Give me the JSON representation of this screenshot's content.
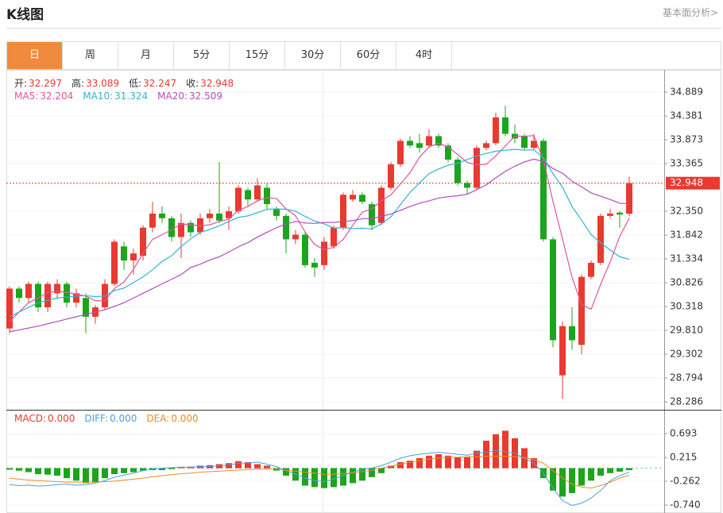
{
  "header": {
    "title": "K线图",
    "link": "基本面分析>"
  },
  "tabs": [
    "日",
    "周",
    "月",
    "5分",
    "15分",
    "30分",
    "60分",
    "4时"
  ],
  "chart_data": [
    {
      "type": "candlestick",
      "up_color": "#e83a2f",
      "down_color": "#1ca51c",
      "ohlc_labels": [
        "开:",
        "高:",
        "低:",
        "收:"
      ],
      "open": [
        29.85,
        30.7,
        30.5,
        30.8,
        30.3,
        30.6,
        30.8,
        30.4,
        30.5,
        30.1,
        30.3,
        30.8,
        31.6,
        31.3,
        31.4,
        32.0,
        32.3,
        32.2,
        31.8,
        32.1,
        31.9,
        32.2,
        32.3,
        32.2,
        32.35,
        32.8,
        32.6,
        32.85,
        32.4,
        32.25,
        31.75,
        31.85,
        31.25,
        31.2,
        31.6,
        32.0,
        32.6,
        32.7,
        32.5,
        32.1,
        32.85,
        33.35,
        33.85,
        33.8,
        33.75,
        33.95,
        33.75,
        33.45,
        32.95,
        32.85,
        33.7,
        33.8,
        34.35,
        34.0,
        33.95,
        33.7,
        33.85,
        31.75,
        28.85,
        29.9,
        29.5,
        30.95,
        31.25,
        32.25,
        32.32,
        32.297
      ],
      "high": [
        30.75,
        30.75,
        30.85,
        30.85,
        30.85,
        30.9,
        30.85,
        30.7,
        30.6,
        30.35,
        30.9,
        31.75,
        31.7,
        31.55,
        32.05,
        32.55,
        32.45,
        32.25,
        32.3,
        32.15,
        32.3,
        32.4,
        33.4,
        32.45,
        32.9,
        32.85,
        33.05,
        32.95,
        32.45,
        32.3,
        31.95,
        31.9,
        31.35,
        31.8,
        32.05,
        32.75,
        32.8,
        32.75,
        32.55,
        32.9,
        33.4,
        33.9,
        33.95,
        34.0,
        34.1,
        34.0,
        33.8,
        33.5,
        33.0,
        33.75,
        33.85,
        34.45,
        34.6,
        34.2,
        34.0,
        34.0,
        33.9,
        31.8,
        30.0,
        30.3,
        31.0,
        31.3,
        32.3,
        32.4,
        32.35,
        33.089
      ],
      "low": [
        29.75,
        30.4,
        30.4,
        30.2,
        30.2,
        30.5,
        30.3,
        30.3,
        29.75,
        29.95,
        30.25,
        30.75,
        31.1,
        31.0,
        31.3,
        31.9,
        32.1,
        31.7,
        31.35,
        31.8,
        31.85,
        32.1,
        32.1,
        31.95,
        32.3,
        32.45,
        32.55,
        32.4,
        32.15,
        31.45,
        31.65,
        31.15,
        30.95,
        31.1,
        31.55,
        31.95,
        32.55,
        32.5,
        31.95,
        32.05,
        32.8,
        33.3,
        33.7,
        33.6,
        33.7,
        33.7,
        33.4,
        32.9,
        32.7,
        32.8,
        33.65,
        33.75,
        33.95,
        33.8,
        33.65,
        33.65,
        31.7,
        29.45,
        28.35,
        29.4,
        29.3,
        30.9,
        31.2,
        32.2,
        32.0,
        32.247
      ],
      "close": [
        30.7,
        30.5,
        30.8,
        30.3,
        30.8,
        30.8,
        30.4,
        30.6,
        30.1,
        30.3,
        30.8,
        31.7,
        31.3,
        31.45,
        32.0,
        32.3,
        32.2,
        31.8,
        32.1,
        31.9,
        32.2,
        32.3,
        32.15,
        32.35,
        32.85,
        32.6,
        32.9,
        32.5,
        32.25,
        31.75,
        31.85,
        31.2,
        31.15,
        31.7,
        32.0,
        32.7,
        32.7,
        32.55,
        32.05,
        32.85,
        33.35,
        33.85,
        33.75,
        33.7,
        33.95,
        33.75,
        33.45,
        32.95,
        32.85,
        33.7,
        33.8,
        34.35,
        34.0,
        33.9,
        33.7,
        33.85,
        31.75,
        29.6,
        29.9,
        29.6,
        30.95,
        31.25,
        32.25,
        32.3,
        32.28,
        32.948
      ],
      "series": [
        {
          "name": "MA5:",
          "color": "#e0559a",
          "values": [
            30.0,
            30.2,
            30.4,
            30.5,
            30.62,
            30.64,
            30.62,
            30.58,
            30.54,
            30.44,
            30.44,
            30.7,
            30.84,
            31.11,
            31.45,
            31.75,
            31.85,
            31.95,
            32.08,
            32.06,
            32.04,
            32.06,
            32.13,
            32.18,
            32.37,
            32.45,
            32.57,
            32.64,
            32.62,
            32.4,
            32.25,
            31.91,
            31.64,
            31.53,
            31.58,
            31.75,
            32.05,
            32.33,
            32.4,
            32.57,
            32.7,
            32.93,
            33.17,
            33.5,
            33.72,
            33.8,
            33.72,
            33.56,
            33.39,
            33.34,
            33.35,
            33.53,
            33.74,
            33.95,
            33.95,
            33.96,
            33.44,
            32.56,
            31.76,
            30.94,
            30.36,
            30.26,
            30.79,
            31.27,
            31.81,
            32.204
          ]
        },
        {
          "name": "MA10:",
          "color": "#2fb3d6",
          "values": [
            30.1,
            30.2,
            30.3,
            30.4,
            30.45,
            30.5,
            30.52,
            30.54,
            30.55,
            30.53,
            30.54,
            30.66,
            30.71,
            30.83,
            30.95,
            31.1,
            31.28,
            31.4,
            31.6,
            31.76,
            31.9,
            31.96,
            32.04,
            32.13,
            32.22,
            32.25,
            32.32,
            32.39,
            32.4,
            32.39,
            32.35,
            32.24,
            32.14,
            32.08,
            31.99,
            32.0,
            31.98,
            31.99,
            31.97,
            32.08,
            32.23,
            32.49,
            32.75,
            32.95,
            33.15,
            33.25,
            33.33,
            33.37,
            33.45,
            33.53,
            33.58,
            33.63,
            33.65,
            33.67,
            33.65,
            33.66,
            33.49,
            33.15,
            32.86,
            32.45,
            32.16,
            31.85,
            31.68,
            31.52,
            31.38,
            31.324
          ]
        },
        {
          "name": "MA20:",
          "color": "#b04ec2",
          "values": [
            29.78,
            29.82,
            29.86,
            29.9,
            29.95,
            30.0,
            30.05,
            30.1,
            30.15,
            30.2,
            30.25,
            30.32,
            30.4,
            30.5,
            30.6,
            30.7,
            30.8,
            30.9,
            31.0,
            31.15,
            31.22,
            31.31,
            31.38,
            31.48,
            31.59,
            31.68,
            31.8,
            31.9,
            32.0,
            32.08,
            32.13,
            32.1,
            32.09,
            32.11,
            32.11,
            32.13,
            32.15,
            32.19,
            32.19,
            32.24,
            32.29,
            32.37,
            32.45,
            32.52,
            32.57,
            32.63,
            32.66,
            32.68,
            32.71,
            32.81,
            32.91,
            33.06,
            33.2,
            33.31,
            33.4,
            33.46,
            33.41,
            33.26,
            33.16,
            32.99,
            32.87,
            32.74,
            32.67,
            32.6,
            32.52,
            32.509
          ]
        }
      ],
      "ylim": [
        28.117,
        35.363
      ],
      "yticks": [
        34.889,
        34.381,
        33.873,
        33.365,
        {
          "value": 32.35,
          "label": "32.350"
        },
        31.842,
        31.334,
        30.826,
        30.318,
        {
          "value": 29.81,
          "label": "29.810"
        },
        29.302,
        28.794,
        28.286
      ]
    },
    {
      "type": "macd",
      "up_color": "#e83a2f",
      "down_color": "#1ca51c",
      "histogram_name": "MACD:",
      "histogram_color": "#e83a2f",
      "histogram_label": "0.000",
      "histogram": [
        -0.03,
        -0.05,
        -0.08,
        -0.12,
        -0.13,
        -0.15,
        -0.2,
        -0.25,
        -0.3,
        -0.28,
        -0.2,
        -0.12,
        -0.1,
        -0.08,
        -0.05,
        -0.04,
        -0.04,
        -0.02,
        0.02,
        0.03,
        0.05,
        0.06,
        0.08,
        0.1,
        0.14,
        0.12,
        0.08,
        0.05,
        -0.05,
        -0.15,
        -0.25,
        -0.35,
        -0.38,
        -0.4,
        -0.38,
        -0.35,
        -0.3,
        -0.25,
        -0.18,
        -0.1,
        0.05,
        0.12,
        0.15,
        0.2,
        0.25,
        0.28,
        0.25,
        0.22,
        0.22,
        0.35,
        0.55,
        0.68,
        0.75,
        0.6,
        0.4,
        0.2,
        -0.2,
        -0.45,
        -0.57,
        -0.5,
        -0.35,
        -0.25,
        -0.15,
        -0.1,
        -0.07,
        -0.04
      ],
      "series": [
        {
          "name": "DIFF:",
          "color": "#4a9fe0",
          "label": "0.000",
          "values": [
            -0.33,
            -0.35,
            -0.34,
            -0.36,
            -0.35,
            -0.33,
            -0.32,
            -0.34,
            -0.33,
            -0.3,
            -0.25,
            -0.18,
            -0.14,
            -0.1,
            -0.05,
            -0.02,
            0.0,
            0.01,
            0.02,
            0.02,
            0.03,
            0.03,
            0.05,
            0.06,
            0.1,
            0.1,
            0.12,
            0.08,
            0.03,
            -0.05,
            -0.12,
            -0.2,
            -0.25,
            -0.27,
            -0.22,
            -0.15,
            -0.08,
            -0.02,
            0.0,
            0.05,
            0.12,
            0.2,
            0.25,
            0.28,
            0.3,
            0.32,
            0.3,
            0.28,
            0.26,
            0.3,
            0.32,
            0.35,
            0.33,
            0.3,
            0.2,
            0.1,
            -0.1,
            -0.4,
            -0.65,
            -0.75,
            -0.7,
            -0.6,
            -0.45,
            -0.25,
            -0.15,
            -0.08
          ]
        },
        {
          "name": "DEA:",
          "color": "#f08a24",
          "label": "0.000",
          "values": [
            -0.2,
            -0.22,
            -0.24,
            -0.25,
            -0.26,
            -0.27,
            -0.28,
            -0.28,
            -0.28,
            -0.28,
            -0.27,
            -0.26,
            -0.24,
            -0.22,
            -0.2,
            -0.17,
            -0.15,
            -0.13,
            -0.11,
            -0.1,
            -0.08,
            -0.07,
            -0.06,
            -0.05,
            -0.04,
            -0.03,
            -0.02,
            -0.02,
            -0.02,
            -0.04,
            -0.06,
            -0.08,
            -0.1,
            -0.12,
            -0.12,
            -0.11,
            -0.09,
            -0.07,
            -0.04,
            0.0,
            0.04,
            0.08,
            0.12,
            0.15,
            0.18,
            0.2,
            0.22,
            0.22,
            0.23,
            0.23,
            0.24,
            0.24,
            0.24,
            0.23,
            0.21,
            0.17,
            0.1,
            -0.05,
            -0.2,
            -0.32,
            -0.38,
            -0.4,
            -0.35,
            -0.28,
            -0.2,
            -0.14
          ]
        }
      ],
      "ylim": [
        -0.899,
        1.155
      ],
      "yticks": [
        0.693,
        0.215,
        -0.262,
        {
          "value": -0.74,
          "label": "-0.740"
        }
      ]
    }
  ]
}
